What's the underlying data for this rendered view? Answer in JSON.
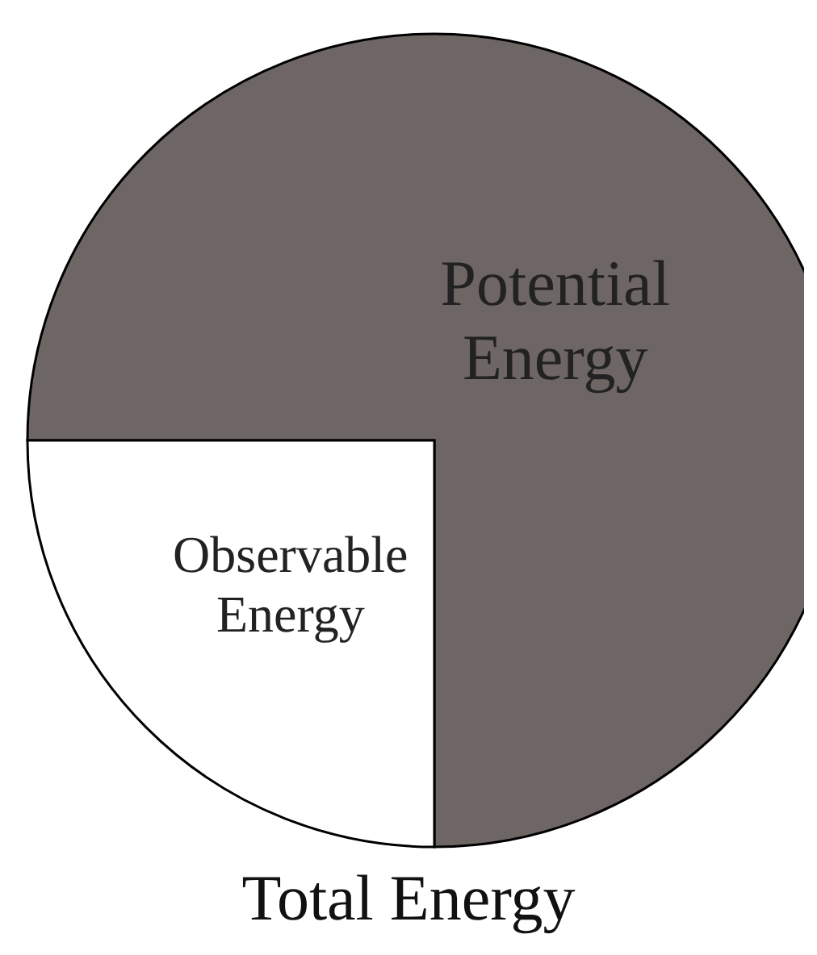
{
  "chart_data": {
    "type": "pie",
    "title": "Total Energy",
    "categories": [
      "Potential Energy",
      "Observable Energy"
    ],
    "values": [
      75,
      25
    ],
    "colors": [
      "#6e6664",
      "#ffffff"
    ]
  }
}
